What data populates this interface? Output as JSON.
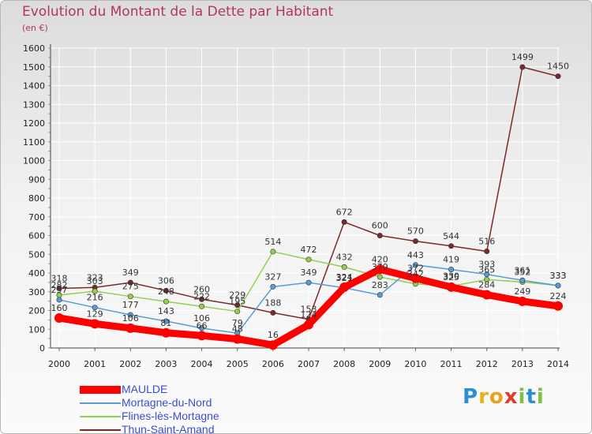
{
  "title": "Evolution du Montant de la Dette par Habitant",
  "subtitle": "(en €)",
  "logo": "Proxiti",
  "colors": {
    "background_top": "#dcdcdc",
    "title": "#b3336b",
    "legend_text": "#3a4fd0",
    "grid": "#ffffff",
    "axis": "#444444"
  },
  "chart_data": {
    "type": "line",
    "title": "Evolution du Montant de la Dette par Habitant",
    "ylabel": "(en €)",
    "xlabel": "",
    "categories": [
      "2000",
      "2001",
      "2002",
      "2003",
      "2004",
      "2005",
      "2006",
      "2007",
      "2008",
      "2009",
      "2010",
      "2011",
      "2012",
      "2013",
      "2014"
    ],
    "ylim": [
      0,
      1600
    ],
    "yticks": [
      0,
      100,
      200,
      300,
      400,
      500,
      600,
      700,
      800,
      900,
      1000,
      1100,
      1200,
      1300,
      1400,
      1500,
      1600
    ],
    "grid": true,
    "series": [
      {
        "name": "MAULDE",
        "color": "#ff0000",
        "width": "thick",
        "values": [
          160,
          129,
          106,
          81,
          66,
          48,
          16,
          124,
          324,
          420,
          372,
          325,
          284,
          249,
          224
        ],
        "labels": [
          "160",
          "129",
          "106",
          "81",
          "66",
          "48",
          "16",
          "124",
          "324",
          "420",
          "372",
          "325",
          "284",
          "249",
          "224"
        ]
      },
      {
        "name": "Mortagne-du-Nord",
        "color": "#5b9bd5",
        "width": "thin",
        "values": [
          257,
          216,
          177,
          143,
          106,
          79,
          327,
          349,
          321,
          283,
          443,
          419,
          393,
          361,
          333
        ],
        "labels": [
          "257",
          "216",
          "177",
          "143",
          "106",
          "79",
          "327",
          "349",
          "321",
          "283",
          "443",
          "419",
          "393",
          "361",
          "333"
        ]
      },
      {
        "name": "Flines-lès-Mortagne",
        "color": "#92d050",
        "width": "thin",
        "values": [
          282,
          303,
          275,
          248,
          222,
          195,
          514,
          472,
          432,
          379,
          342,
          330,
          365,
          352,
          333
        ],
        "labels": [
          "282",
          "303",
          "275",
          "248",
          "222",
          "195",
          "514",
          "472",
          "432",
          "379",
          "342",
          "330",
          "365",
          "352",
          "333"
        ]
      },
      {
        "name": "Thun-Saint-Amand",
        "color": "#7b2a2a",
        "width": "thin",
        "values": [
          318,
          323,
          349,
          306,
          260,
          229,
          188,
          153,
          672,
          600,
          570,
          544,
          516,
          1499,
          1450
        ],
        "labels": [
          "318",
          "323",
          "349",
          "306",
          "260",
          "229",
          "188",
          "153",
          "672",
          "600",
          "570",
          "544",
          "516",
          "1499",
          "1450"
        ]
      }
    ]
  }
}
